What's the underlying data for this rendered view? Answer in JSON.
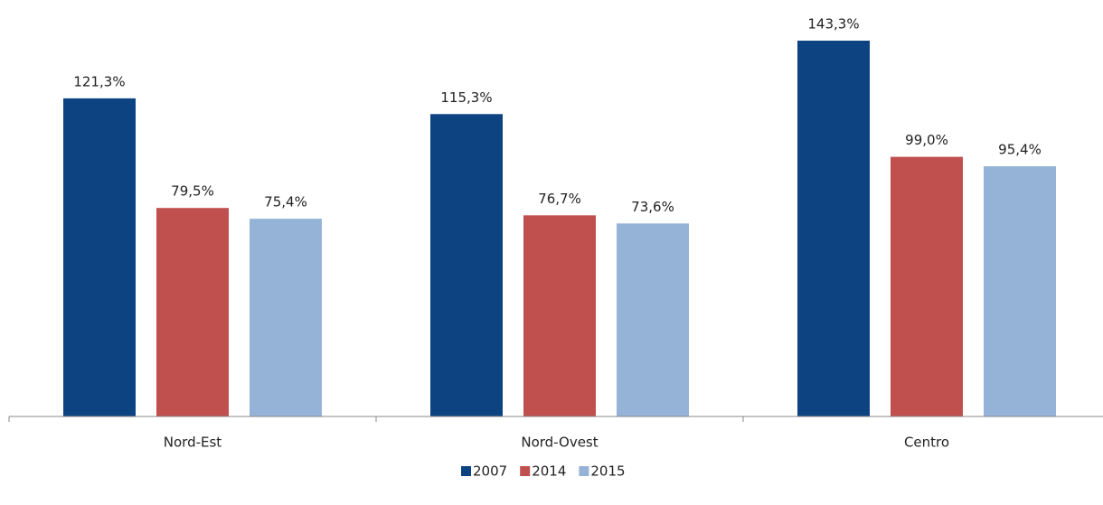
{
  "chart_data": {
    "type": "bar",
    "categories": [
      "Nord-Est",
      "Nord-Ovest",
      "Centro"
    ],
    "series": [
      {
        "name": "2007",
        "color": "#0d4381",
        "values": [
          121.3,
          115.3,
          143.3
        ],
        "value_labels": [
          "121,3%",
          "115,3%",
          "143,3%"
        ]
      },
      {
        "name": "2014",
        "color": "#c0504d",
        "values": [
          79.5,
          76.7,
          99.0
        ],
        "value_labels": [
          "79,5%",
          "76,7%",
          "99,0%"
        ]
      },
      {
        "name": "2015",
        "color": "#95b3d7",
        "values": [
          75.4,
          73.6,
          95.4
        ],
        "value_labels": [
          "75,4%",
          "73,6%",
          "95,4%"
        ]
      }
    ],
    "legend": "bottom"
  }
}
